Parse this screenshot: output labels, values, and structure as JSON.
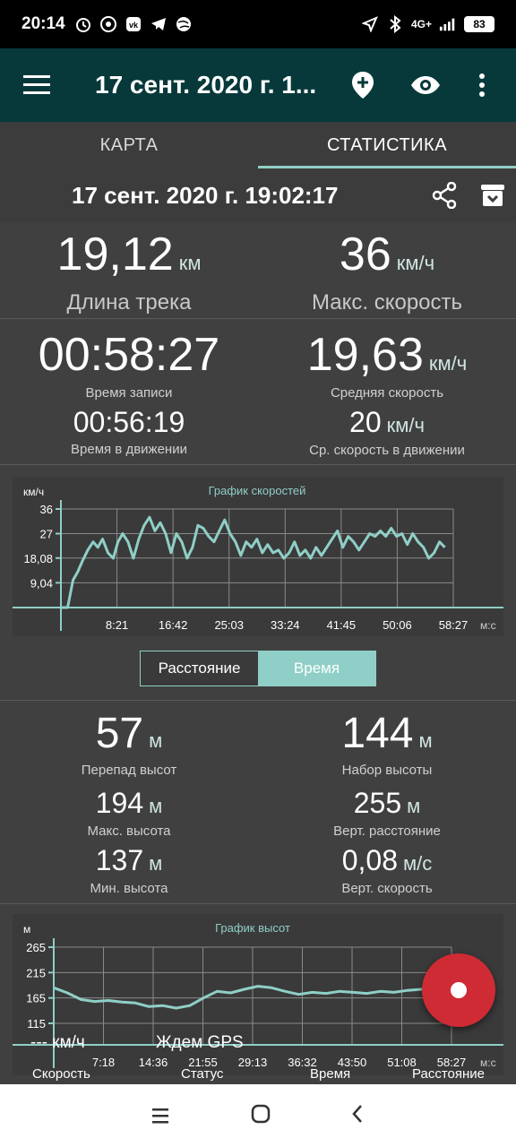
{
  "status_bar": {
    "time": "20:14",
    "network": "4G+",
    "battery": "83",
    "left_icons": [
      "alarm-icon",
      "whatsapp-icon",
      "vk-icon",
      "telegram-icon",
      "globe-icon"
    ],
    "right_icons": [
      "location-arrow-icon",
      "bluetooth-icon",
      "signal-icon",
      "battery-icon"
    ]
  },
  "app_bar": {
    "title": "17 сент. 2020 г. 1...",
    "actions": [
      "add-location-icon",
      "eye-icon",
      "more-vert-icon"
    ]
  },
  "tabs": [
    {
      "label": "КАРТА",
      "active": false
    },
    {
      "label": "СТАТИСТИКА",
      "active": true
    }
  ],
  "track": {
    "datetime": "17 сент. 2020 г. 19:02:17"
  },
  "stats_top": {
    "length": {
      "value": "19,12",
      "unit": "км",
      "label": "Длина трека"
    },
    "max_speed": {
      "value": "36",
      "unit": "км/ч",
      "label": "Макс. скорость"
    }
  },
  "stats_time": {
    "record_time": {
      "value": "00:58:27",
      "label": "Время записи"
    },
    "avg_speed": {
      "value": "19,63",
      "unit": "км/ч",
      "label": "Средняя скорость"
    },
    "moving_time": {
      "value": "00:56:19",
      "label": "Время в движении"
    },
    "moving_avg": {
      "value": "20",
      "unit": "км/ч",
      "label": "Ср. скорость в движении"
    }
  },
  "chart_data": [
    {
      "type": "line",
      "title": "График скоростей",
      "ylabel": "км/ч",
      "xlabel": "м:с",
      "y_ticks": [
        "36",
        "27",
        "18,08",
        "9,04"
      ],
      "x_ticks": [
        "8:21",
        "16:42",
        "25:03",
        "33:24",
        "41:45",
        "50:06",
        "58:27"
      ],
      "ylim": [
        0,
        36
      ],
      "xlim_minutes": [
        0,
        58.45
      ],
      "grid": true,
      "series": [
        {
          "color": "#8fcfc7",
          "x": [
            0,
            1,
            1.8,
            2.5,
            3.2,
            4,
            4.8,
            5.5,
            6.2,
            7,
            7.8,
            8.5,
            9.2,
            10,
            10.8,
            11.6,
            12.4,
            13.2,
            14,
            14.8,
            15.6,
            16.4,
            17.2,
            18,
            18.8,
            19.6,
            20.4,
            21.2,
            22,
            22.8,
            23.6,
            24.4,
            25.2,
            26,
            26.8,
            27.6,
            28.4,
            29.2,
            30,
            30.8,
            31.6,
            32.4,
            33.2,
            34,
            34.8,
            35.6,
            36.4,
            37.2,
            38,
            38.8,
            39.6,
            40.4,
            41.2,
            42,
            42.8,
            43.6,
            44.4,
            45.2,
            46,
            46.8,
            47.6,
            48.4,
            49.2,
            50,
            50.8,
            51.6,
            52.4,
            53.2,
            54,
            54.8,
            55.6,
            56.4,
            57.2
          ],
          "y": [
            0,
            0,
            10,
            13,
            17,
            21,
            24,
            22,
            25,
            20,
            18,
            24,
            27,
            24,
            18,
            25,
            30,
            33,
            28,
            31,
            27,
            20,
            27,
            24,
            18,
            22,
            30,
            29,
            26,
            24,
            28,
            32,
            27,
            24,
            19,
            24,
            22,
            25,
            20,
            23,
            20,
            21,
            18,
            20,
            24,
            19,
            21,
            18,
            22,
            19,
            22,
            25,
            28,
            22,
            26,
            24,
            21,
            24,
            27,
            26,
            28,
            26,
            29,
            26,
            27,
            23,
            27,
            24,
            22,
            18,
            20,
            24,
            22
          ]
        }
      ]
    },
    {
      "type": "line",
      "title": "График высот",
      "ylabel": "м",
      "xlabel": "м:с",
      "y_ticks": [
        "265",
        "215",
        "165",
        "115"
      ],
      "x_ticks": [
        "7:18",
        "14:36",
        "21:55",
        "29:13",
        "36:32",
        "43:50",
        "51:08",
        "58:27"
      ],
      "ylim": [
        115,
        265
      ],
      "xlim_minutes": [
        0,
        58.45
      ],
      "grid": true,
      "series": [
        {
          "color": "#8fcfc7",
          "x": [
            0,
            2,
            4,
            6,
            8,
            10,
            12,
            14,
            16,
            18,
            20,
            22,
            24,
            26,
            28,
            30,
            32,
            34,
            36,
            38,
            40,
            42,
            44,
            46,
            48,
            50,
            52,
            54,
            56,
            58
          ],
          "y": [
            185,
            175,
            162,
            158,
            160,
            157,
            155,
            148,
            150,
            145,
            150,
            165,
            178,
            175,
            182,
            188,
            185,
            178,
            172,
            176,
            174,
            178,
            176,
            174,
            178,
            176,
            180,
            182,
            186,
            188
          ]
        }
      ]
    }
  ],
  "mode_toggle": {
    "distance": "Расстояние",
    "time": "Время",
    "active": "time"
  },
  "elevation": {
    "diff": {
      "value": "57",
      "unit": "м",
      "label": "Перепад высот"
    },
    "gain": {
      "value": "144",
      "unit": "м",
      "label": "Набор высоты"
    },
    "max": {
      "value": "194",
      "unit": "м",
      "label": "Макс. высота"
    },
    "vert_dist": {
      "value": "255",
      "unit": "м",
      "label": "Верт. расстояние"
    },
    "min": {
      "value": "137",
      "unit": "м",
      "label": "Мин. высота"
    },
    "vert_speed": {
      "value": "0,08",
      "unit": "м/с",
      "label": "Верт. скорость"
    }
  },
  "overlay": {
    "speed_value": "--- км/ч",
    "status_value": "Ждем GPS",
    "labels": [
      "Скорость",
      "Статус",
      "Время",
      "Расстояние"
    ]
  },
  "colors": {
    "accent": "#8fcfc7",
    "app_bar": "#07393a",
    "fab": "#cf2b35",
    "background": "#404040"
  },
  "nav_bar": [
    "menu-icon",
    "home-icon",
    "back-icon"
  ]
}
